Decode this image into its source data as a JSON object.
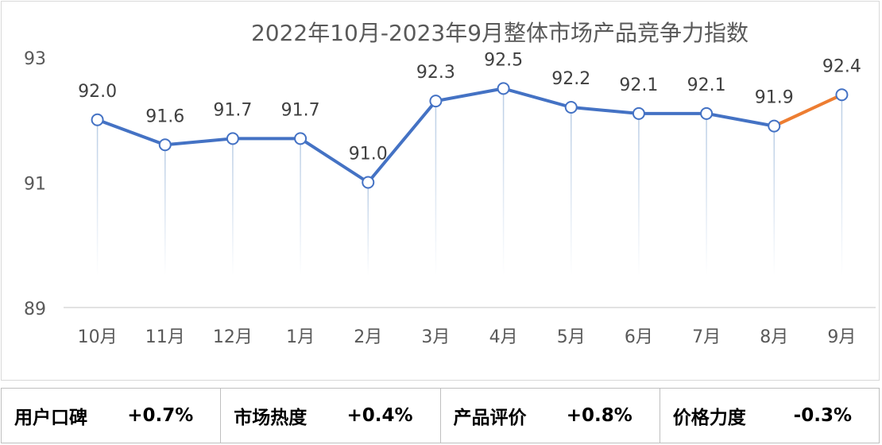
{
  "chart_data": {
    "type": "line",
    "title": "2022年10月-2023年9月整体市场产品竞争力指数",
    "categories": [
      "10月",
      "11月",
      "12月",
      "1月",
      "2月",
      "3月",
      "4月",
      "5月",
      "6月",
      "7月",
      "8月",
      "9月"
    ],
    "values": [
      92.0,
      91.6,
      91.7,
      91.7,
      91.0,
      92.3,
      92.5,
      92.2,
      92.1,
      92.1,
      91.9,
      92.4
    ],
    "data_labels": [
      "92.0",
      "91.6",
      "91.7",
      "91.7",
      "91.0",
      "92.3",
      "92.5",
      "92.2",
      "92.1",
      "92.1",
      "91.9",
      "92.4"
    ],
    "ylim": [
      89,
      93
    ],
    "yticks": [
      "89",
      "91",
      "93"
    ],
    "xlabel": "",
    "ylabel": "",
    "line_color": "#4472C4",
    "highlight_color": "#ED7D31",
    "highlight_last_segment": true,
    "grid": false
  },
  "metrics": [
    {
      "label": "用户口碑",
      "value": "+0.7%"
    },
    {
      "label": "市场热度",
      "value": "+0.4%"
    },
    {
      "label": "产品评价",
      "value": "+0.8%"
    },
    {
      "label": "价格力度",
      "value": "-0.3%"
    }
  ]
}
